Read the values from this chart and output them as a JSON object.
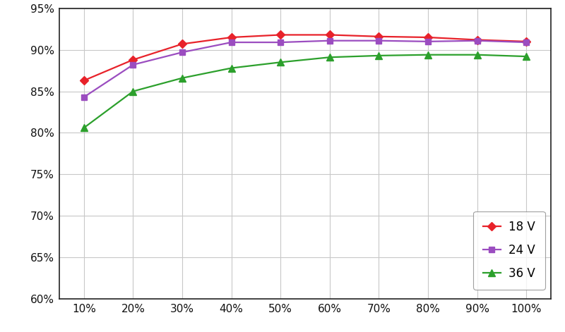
{
  "x_labels": [
    "10%",
    "20%",
    "30%",
    "40%",
    "50%",
    "60%",
    "70%",
    "80%",
    "90%",
    "100%"
  ],
  "x_values": [
    10,
    20,
    30,
    40,
    50,
    60,
    70,
    80,
    90,
    100
  ],
  "series": [
    {
      "label": "18 V",
      "color": "#e8222a",
      "marker": "D",
      "markersize": 6,
      "values": [
        86.3,
        88.8,
        90.7,
        91.5,
        91.8,
        91.8,
        91.6,
        91.5,
        91.2,
        91.0
      ]
    },
    {
      "label": "24 V",
      "color": "#9b4dc0",
      "marker": "s",
      "markersize": 6,
      "values": [
        84.3,
        88.2,
        89.7,
        90.9,
        90.9,
        91.1,
        91.1,
        91.0,
        91.1,
        90.9
      ]
    },
    {
      "label": "36 V",
      "color": "#2ca02c",
      "marker": "^",
      "markersize": 7,
      "values": [
        80.6,
        85.0,
        86.6,
        87.8,
        88.5,
        89.1,
        89.3,
        89.4,
        89.4,
        89.2
      ]
    }
  ],
  "ylim": [
    60,
    95
  ],
  "yticks": [
    60,
    65,
    70,
    75,
    80,
    85,
    90,
    95
  ],
  "background_color": "#ffffff",
  "grid_color": "#c8c8c8",
  "linewidth": 1.6,
  "tick_labelsize": 11,
  "legend_fontsize": 12
}
